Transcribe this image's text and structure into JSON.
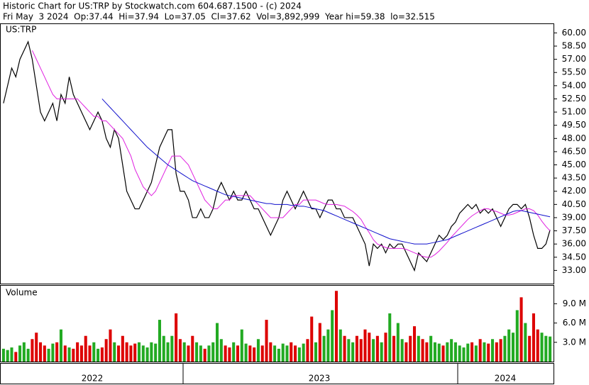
{
  "header": {
    "line1": "Historic Chart for US:TRP by Stockwatch.com 604.687.1500 - (c) 2024",
    "line2": "Fri May  3 2024  Op:37.44  Hi=37.94  Lo=37.05  Cl=37.62  Vol=3,892,999  Year hi=59.38  lo=32.515"
  },
  "time_axis": {
    "labels": [
      "2022",
      "2023",
      "2024"
    ]
  },
  "chart_data": [
    {
      "type": "line",
      "title": "US:TRP",
      "ylim": [
        31.5,
        61
      ],
      "yticks": [
        {
          "value": 33,
          "label": "33.00"
        },
        {
          "value": 34.5,
          "label": "34.50"
        },
        {
          "value": 36,
          "label": "36.00"
        },
        {
          "value": 37.5,
          "label": "37.50"
        },
        {
          "value": 39,
          "label": "39.00"
        },
        {
          "value": 40.5,
          "label": "40.50"
        },
        {
          "value": 42,
          "label": "42.00"
        },
        {
          "value": 43.5,
          "label": "43.50"
        },
        {
          "value": 45,
          "label": "45.00"
        },
        {
          "value": 46.5,
          "label": "46.50"
        },
        {
          "value": 48,
          "label": "48.00"
        },
        {
          "value": 49.5,
          "label": "49.50"
        },
        {
          "value": 51,
          "label": "51.00"
        },
        {
          "value": 52.5,
          "label": "52.50"
        },
        {
          "value": 54,
          "label": "54.00"
        },
        {
          "value": 55.5,
          "label": "55.50"
        },
        {
          "value": 57,
          "label": "57.00"
        },
        {
          "value": 58.5,
          "label": "58.50"
        },
        {
          "value": 60,
          "label": "60.00"
        }
      ],
      "series": [
        {
          "color": "#000000",
          "values": [
            52,
            54,
            56,
            55,
            57,
            58,
            59,
            57,
            54,
            51,
            50,
            51,
            52,
            50,
            53,
            52,
            55,
            53,
            52,
            51,
            50,
            49,
            50,
            51,
            50,
            48,
            47,
            49,
            48,
            45,
            42,
            41,
            40,
            40,
            41,
            42,
            43,
            45,
            47,
            48,
            49,
            49,
            44,
            42,
            42,
            41,
            39,
            39,
            40,
            39,
            39,
            40,
            42,
            43,
            42,
            41,
            42,
            41,
            41,
            42,
            41,
            40,
            40,
            39,
            38,
            37,
            38,
            39,
            41,
            42,
            41,
            40,
            41,
            42,
            41,
            40,
            40,
            39,
            40,
            41,
            41,
            40,
            40,
            39,
            39,
            39,
            38,
            37,
            36,
            33.5,
            36,
            35.5,
            36,
            35,
            36,
            35.5,
            36,
            36,
            35,
            34,
            33,
            35,
            34.5,
            34,
            35,
            36,
            37,
            36.5,
            37,
            38,
            38.5,
            39.5,
            40,
            40.5,
            40,
            40.5,
            39.5,
            40,
            39.5,
            40,
            39,
            38,
            39,
            40,
            40.5,
            40.5,
            40,
            40.5,
            39,
            37,
            35.5,
            35.5,
            36,
            37.6
          ]
        },
        {
          "color": "#e020e0",
          "values": [
            null,
            null,
            null,
            null,
            null,
            null,
            null,
            58,
            57,
            56,
            55,
            54,
            53,
            52.5,
            52.5,
            52.5,
            52.5,
            52.5,
            52.5,
            52,
            51.5,
            51,
            50.5,
            50.5,
            50,
            50,
            49.5,
            49,
            48.5,
            48,
            47,
            46,
            44.5,
            43.5,
            42.5,
            42,
            41.5,
            42,
            43,
            44,
            45,
            46,
            46,
            46,
            45.5,
            45,
            44,
            43,
            42,
            41,
            40.5,
            40,
            40,
            40.5,
            41,
            41,
            41.5,
            41.5,
            41.5,
            41.5,
            41.5,
            41,
            40.5,
            40,
            39.5,
            39,
            39,
            39,
            39,
            39.5,
            40,
            40.5,
            40.5,
            41,
            41,
            41,
            41,
            40.8,
            40.6,
            40.5,
            40.5,
            40.5,
            40.4,
            40.3,
            40,
            39.7,
            39.3,
            38.8,
            38,
            37.3,
            36.5,
            36,
            35.8,
            35.6,
            35.5,
            35.5,
            35.5,
            35.5,
            35.4,
            35.2,
            35,
            34.8,
            34.6,
            34.5,
            34.5,
            34.8,
            35.2,
            35.7,
            36.2,
            36.8,
            37.3,
            37.8,
            38.3,
            38.8,
            39.2,
            39.5,
            39.8,
            40,
            40,
            39.8,
            39.7,
            39.5,
            39.3,
            39.3,
            39.4,
            39.6,
            39.8,
            40,
            40,
            39.8,
            39.3,
            38.6,
            38,
            37.5
          ]
        },
        {
          "color": "#1010cc",
          "values": [
            null,
            null,
            null,
            null,
            null,
            null,
            null,
            null,
            null,
            null,
            null,
            null,
            null,
            null,
            null,
            null,
            null,
            null,
            null,
            null,
            null,
            null,
            null,
            null,
            52.5,
            52,
            51.5,
            51,
            50.5,
            50,
            49.5,
            49,
            48.5,
            48,
            47.5,
            47,
            46.6,
            46.2,
            45.8,
            45.4,
            45,
            44.7,
            44.4,
            44.1,
            43.8,
            43.5,
            43.2,
            43,
            42.8,
            42.6,
            42.4,
            42.2,
            42,
            41.8,
            41.6,
            41.5,
            41.4,
            41.3,
            41.2,
            41.1,
            41,
            40.9,
            40.8,
            40.7,
            40.6,
            40.6,
            40.5,
            40.5,
            40.5,
            40.5,
            40.4,
            40.4,
            40.3,
            40.3,
            40.2,
            40.1,
            40,
            39.9,
            39.8,
            39.6,
            39.4,
            39.2,
            39,
            38.8,
            38.6,
            38.4,
            38.2,
            38,
            37.8,
            37.6,
            37.4,
            37.2,
            37,
            36.8,
            36.6,
            36.5,
            36.4,
            36.3,
            36.2,
            36.1,
            36,
            36,
            36,
            36,
            36.1,
            36.2,
            36.3,
            36.4,
            36.5,
            36.7,
            36.9,
            37.1,
            37.3,
            37.5,
            37.7,
            37.9,
            38.1,
            38.3,
            38.5,
            38.7,
            38.9,
            39.1,
            39.3,
            39.5,
            39.7,
            39.8,
            39.8,
            39.7,
            39.6,
            39.5,
            39.4,
            39.3,
            39.2,
            39.1
          ]
        }
      ]
    },
    {
      "type": "bar",
      "title": "Volume",
      "ylim": [
        0,
        11.8
      ],
      "yticks": [
        {
          "value": 3,
          "label": "3.0 M"
        },
        {
          "value": 6,
          "label": "6.0 M"
        },
        {
          "value": 9,
          "label": "9.0 M"
        }
      ],
      "up_color": "#22aa22",
      "down_color": "#dd0000",
      "values": [
        2,
        1.8,
        2.2,
        1.5,
        2.5,
        3,
        2,
        3.5,
        4.5,
        3,
        2.5,
        2,
        2.8,
        3,
        5,
        2.5,
        2.2,
        2,
        3,
        2.5,
        4,
        2.5,
        3,
        2,
        2.2,
        3.5,
        5,
        3,
        2.5,
        4,
        3,
        2.5,
        2.8,
        3,
        2.5,
        2.2,
        3,
        2.8,
        6.5,
        4,
        3,
        4,
        7.5,
        3.5,
        3,
        2.5,
        4,
        3,
        2.5,
        2,
        2.5,
        3,
        6,
        3.5,
        2.5,
        2.2,
        3,
        2.5,
        5,
        2.8,
        2.5,
        2.2,
        3.5,
        2.5,
        6.5,
        3,
        2.5,
        2,
        2.8,
        2.5,
        3,
        2.5,
        2.2,
        2.8,
        3.5,
        7,
        3,
        6,
        4,
        5,
        8,
        11,
        5,
        4,
        3.5,
        3,
        4,
        3.5,
        5,
        4.5,
        3.5,
        4,
        3,
        4.5,
        7.5,
        4,
        6,
        3.5,
        3,
        4,
        5.5,
        4,
        3.5,
        3,
        4,
        3,
        2.8,
        2.5,
        3,
        3.5,
        3,
        2.5,
        2.2,
        2.8,
        3,
        2.5,
        3.5,
        3,
        2.8,
        3.5,
        3,
        3.5,
        4,
        5,
        4.5,
        8,
        10,
        6,
        4,
        7.5,
        5,
        4.5,
        4,
        3.9
      ]
    }
  ]
}
